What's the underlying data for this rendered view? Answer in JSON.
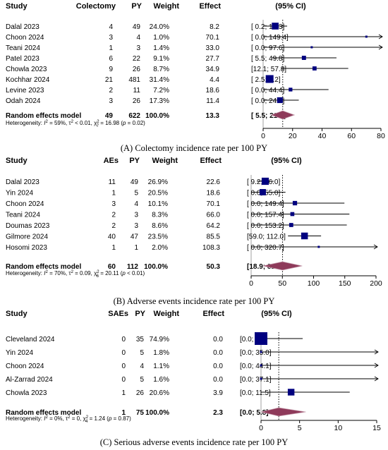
{
  "chart_data": [
    {
      "type": "forest",
      "id": "A",
      "caption": "(A) Colectomy incidence rate per 100 PY",
      "headers": {
        "study": "Study",
        "events": "Colectomy",
        "py": "PY",
        "weight": "Weight",
        "effect": "Effect",
        "ci": "(95% CI)"
      },
      "xlim": [
        0,
        80
      ],
      "xticks": [
        0,
        20,
        40,
        60,
        80
      ],
      "ref_line": 13.3,
      "studies": [
        {
          "study": "Dalal 2023",
          "events": "4",
          "py": "49",
          "weight": "24.0%",
          "effect": 8.2,
          "ci_text": "[ 0.2; 16.3]",
          "lo": 0.2,
          "hi": 16.3,
          "w": 24.0,
          "arrow": false
        },
        {
          "study": "Choon 2024",
          "events": "3",
          "py": "4",
          "weight": "1.0%",
          "effect": 70.1,
          "ci_text": "[ 0.0; 149.4]",
          "lo": 0.0,
          "hi": 149.4,
          "w": 1.0,
          "arrow": true
        },
        {
          "study": "Teani 2024",
          "events": "1",
          "py": "3",
          "weight": "1.4%",
          "effect": 33.0,
          "ci_text": "[ 0.0; 97.6]",
          "lo": 0.0,
          "hi": 97.6,
          "w": 1.4,
          "arrow": true
        },
        {
          "study": "Patel 2023",
          "events": "6",
          "py": "22",
          "weight": "9.1%",
          "effect": 27.7,
          "ci_text": "[ 5.5; 49.8]",
          "lo": 5.5,
          "hi": 49.8,
          "w": 9.1,
          "arrow": false
        },
        {
          "study": "Chowla 2023",
          "events": "9",
          "py": "26",
          "weight": "8.7%",
          "effect": 34.9,
          "ci_text": "[12.1; 57.8]",
          "lo": 12.1,
          "hi": 57.8,
          "w": 8.7,
          "arrow": false
        },
        {
          "study": "Kochhar 2024",
          "events": "21",
          "py": "481",
          "weight": "31.4%",
          "effect": 4.4,
          "ci_text": "[ 2.5; 6.2]",
          "lo": 2.5,
          "hi": 6.2,
          "w": 31.4,
          "arrow": false
        },
        {
          "study": "Levine 2023",
          "events": "2",
          "py": "11",
          "weight": "7.2%",
          "effect": 18.6,
          "ci_text": "[ 0.0; 44.4]",
          "lo": 0.0,
          "hi": 44.4,
          "w": 7.2,
          "arrow": false
        },
        {
          "study": "Odah 2024",
          "events": "3",
          "py": "26",
          "weight": "17.3%",
          "effect": 11.4,
          "ci_text": "[ 0.0; 24.2]",
          "lo": 0.0,
          "hi": 24.2,
          "w": 17.3,
          "arrow": false
        }
      ],
      "pooled": {
        "label": "Random effects model",
        "events": "49",
        "py": "622",
        "weight": "100.0%",
        "effect": 13.3,
        "ci_text": "[ 5.5; 21.2]",
        "lo": 5.5,
        "hi": 21.2
      },
      "heterogeneity": {
        "prefix": "Heterogeneity: ",
        "i2_label": "I",
        "i2_sup": "2",
        "i2_rest": " = 59%, ",
        "tau2": "τ",
        "tau2_sup": "2",
        "tau2_rest": " < 0.01, ",
        "chi": "χ",
        "chi_sup": "2",
        "chi_sub": "7",
        "chi_rest": " = 16.98 (",
        "p": "p",
        "p_rest": " = 0.02)"
      }
    },
    {
      "type": "forest",
      "id": "B",
      "caption": "(B) Adverse events incidence rate per 100 PY",
      "headers": {
        "study": "Study",
        "events": "AEs",
        "py": "PY",
        "weight": "Weight",
        "effect": "Effect",
        "ci": "(95% CI)"
      },
      "xlim": [
        0,
        200
      ],
      "xticks": [
        0,
        50,
        100,
        150,
        200
      ],
      "ref_line": 50.3,
      "studies": [
        {
          "study": "Dalal 2023",
          "events": "11",
          "py": "49",
          "weight": "26.9%",
          "effect": 22.6,
          "ci_text": "[ 9.2; 36.0]",
          "lo": 9.2,
          "hi": 36.0,
          "w": 26.9,
          "arrow": false
        },
        {
          "study": "Yin 2024",
          "events": "1",
          "py": "5",
          "weight": "20.5%",
          "effect": 18.6,
          "ci_text": "[ 0.0; 55.0]",
          "lo": 0.0,
          "hi": 55.0,
          "w": 20.5,
          "arrow": false
        },
        {
          "study": "Choon 2024",
          "events": "3",
          "py": "4",
          "weight": "10.1%",
          "effect": 70.1,
          "ci_text": "[ 0.0; 149.4]",
          "lo": 0.0,
          "hi": 149.4,
          "w": 10.1,
          "arrow": false
        },
        {
          "study": "Teani 2024",
          "events": "2",
          "py": "3",
          "weight": "8.3%",
          "effect": 66.0,
          "ci_text": "[ 0.0; 157.4]",
          "lo": 0.0,
          "hi": 157.4,
          "w": 8.3,
          "arrow": false
        },
        {
          "study": "Doumas 2023",
          "events": "2",
          "py": "3",
          "weight": "8.6%",
          "effect": 64.2,
          "ci_text": "[ 0.0; 153.2]",
          "lo": 0.0,
          "hi": 153.2,
          "w": 8.6,
          "arrow": false
        },
        {
          "study": "Gilmore 2024",
          "events": "40",
          "py": "47",
          "weight": "23.5%",
          "effect": 85.5,
          "ci_text": "[59.0; 112.0]",
          "lo": 59.0,
          "hi": 112.0,
          "w": 23.5,
          "arrow": false
        },
        {
          "study": "Hosomi 2023",
          "events": "1",
          "py": "1",
          "weight": "2.0%",
          "effect": 108.3,
          "ci_text": "[ 0.0; 320.7]",
          "lo": 0.0,
          "hi": 320.7,
          "w": 2.0,
          "arrow": true
        }
      ],
      "pooled": {
        "label": "Random effects model",
        "events": "60",
        "py": "112",
        "weight": "100.0%",
        "effect": 50.3,
        "ci_text": "[18.9; 81.7]",
        "lo": 18.9,
        "hi": 81.7
      },
      "heterogeneity": {
        "prefix": "Heterogeneity: ",
        "i2_label": "I",
        "i2_sup": "2",
        "i2_rest": " = 70%, ",
        "tau2": "τ",
        "tau2_sup": "2",
        "tau2_rest": " = 0.09, ",
        "chi": "χ",
        "chi_sup": "2",
        "chi_sub": "6",
        "chi_rest": " = 20.11 (",
        "p": "p",
        "p_rest": " < 0.01)"
      }
    },
    {
      "type": "forest",
      "id": "C",
      "caption": "(C) Serious adverse events incidence rate per 100 PY",
      "headers": {
        "study": "Study",
        "events": "SAEs",
        "py": "PY",
        "weight": "Weight",
        "effect": "Effect",
        "ci": "(95% CI)"
      },
      "xlim": [
        0,
        15
      ],
      "xticks": [
        0,
        5,
        10,
        15
      ],
      "ref_line": 2.3,
      "studies": [
        {
          "study": "Cleveland 2024",
          "events": "0",
          "py": "35",
          "weight": "74.9%",
          "effect": 0.0,
          "ci_text": "[0.0; 5.4]",
          "lo": 0.0,
          "hi": 5.4,
          "w": 74.9,
          "arrow": false
        },
        {
          "study": "Yin 2024",
          "events": "0",
          "py": "5",
          "weight": "1.8%",
          "effect": 0.0,
          "ci_text": "[0.0; 35.0]",
          "lo": 0.0,
          "hi": 35.0,
          "w": 1.8,
          "arrow": true
        },
        {
          "study": "Choon 2024",
          "events": "0",
          "py": "4",
          "weight": "1.1%",
          "effect": 0.0,
          "ci_text": "[0.0; 44.1]",
          "lo": 0.0,
          "hi": 44.1,
          "w": 1.1,
          "arrow": true
        },
        {
          "study": "Al-Zarrad 2024",
          "events": "0",
          "py": "5",
          "weight": "1.6%",
          "effect": 0.0,
          "ci_text": "[0.0; 37.1]",
          "lo": 0.0,
          "hi": 37.1,
          "w": 1.6,
          "arrow": true
        },
        {
          "study": "Chowla 2023",
          "events": "1",
          "py": "26",
          "weight": "20.6%",
          "effect": 3.9,
          "ci_text": "[0.0; 11.5]",
          "lo": 0.0,
          "hi": 11.5,
          "w": 20.6,
          "arrow": false
        }
      ],
      "pooled": {
        "label": "Random effects model",
        "events": "1",
        "py": "75",
        "weight": "100.0%",
        "effect": 2.3,
        "ci_text": "[0.0; 5.8]",
        "lo": 0.0,
        "hi": 5.8
      },
      "heterogeneity": {
        "prefix": "Heterogeneity: ",
        "i2_label": "I",
        "i2_sup": "2",
        "i2_rest": " = 0%, ",
        "tau2": "τ",
        "tau2_sup": "2",
        "tau2_rest": " = 0, ",
        "chi": "χ",
        "chi_sup": "2",
        "chi_sub": "4",
        "chi_rest": " = 1.24 (",
        "p": "p",
        "p_rest": " = 0.87)"
      }
    }
  ],
  "colors": {
    "square": "#00007f",
    "diamond": "#8e3a5a",
    "diamond_edge": "#c8a0b0",
    "ci": "#000000"
  }
}
